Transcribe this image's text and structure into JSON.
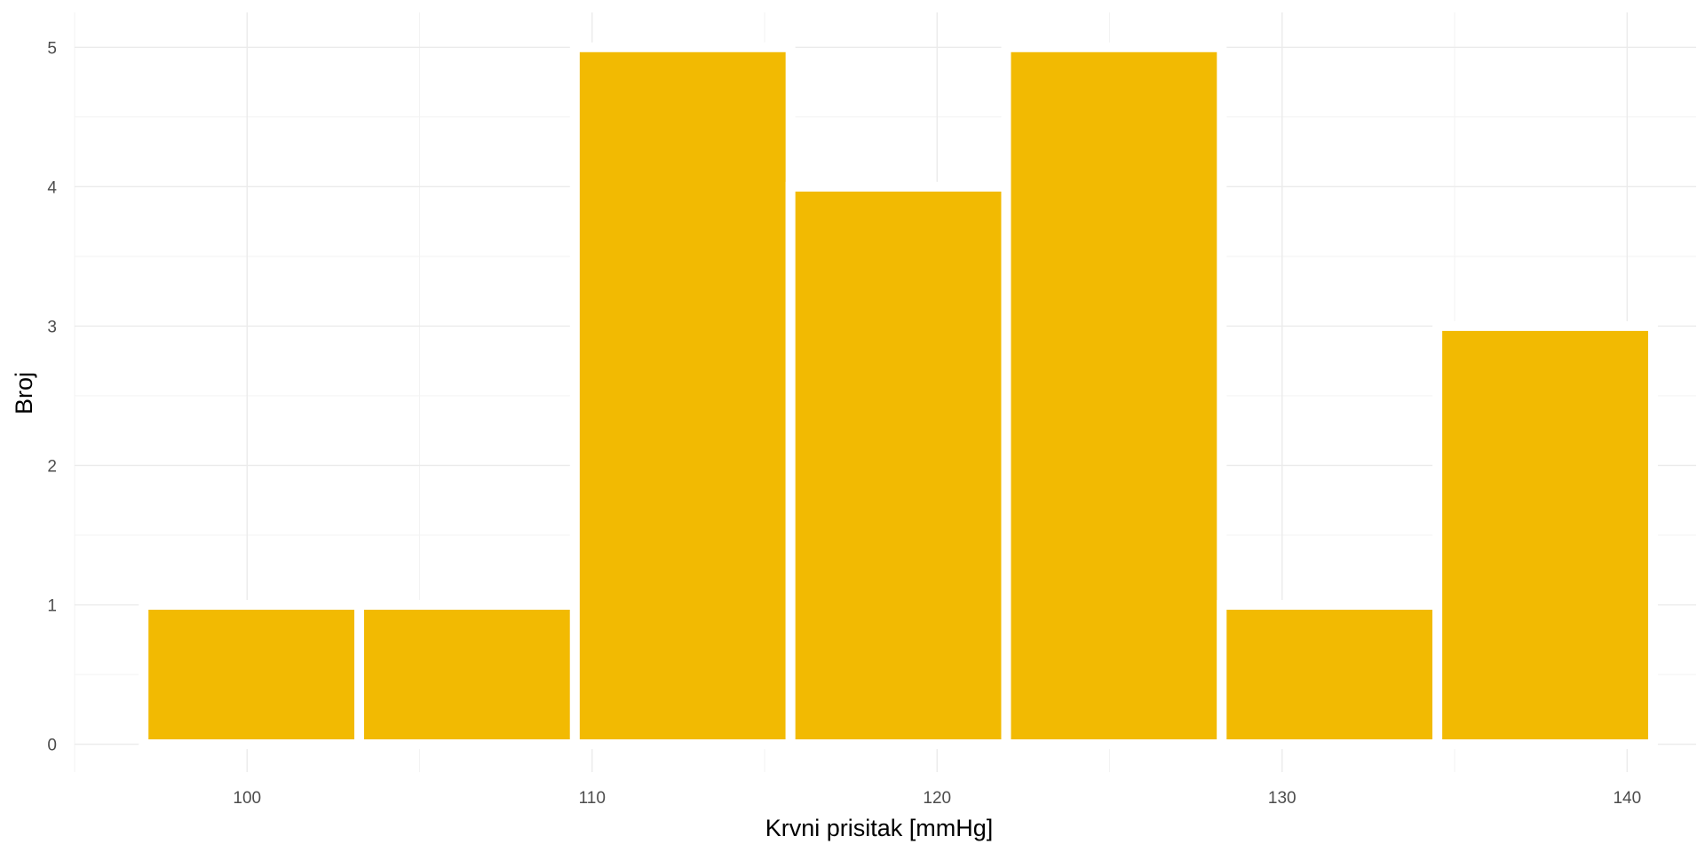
{
  "chart_data": {
    "type": "bar",
    "subtype": "histogram",
    "xlabel": "Krvni prisitak [mmHg]",
    "ylabel": "Broj",
    "bins": [
      {
        "start": 97,
        "end": 103.25,
        "count": 1
      },
      {
        "start": 103.25,
        "end": 109.5,
        "count": 1
      },
      {
        "start": 109.5,
        "end": 115.75,
        "count": 5
      },
      {
        "start": 115.75,
        "end": 122,
        "count": 4
      },
      {
        "start": 122,
        "end": 128.25,
        "count": 5
      },
      {
        "start": 128.25,
        "end": 134.5,
        "count": 1
      },
      {
        "start": 134.5,
        "end": 140.75,
        "count": 3
      }
    ],
    "xlim": [
      95,
      142
    ],
    "ylim": [
      -0.2,
      5.25
    ],
    "x_ticks": [
      100,
      110,
      120,
      130,
      140
    ],
    "x_tick_labels": [
      "100",
      "110",
      "120",
      "130",
      "140"
    ],
    "y_ticks": [
      0,
      1,
      2,
      3,
      4,
      5
    ],
    "y_tick_labels": [
      "0",
      "1",
      "2",
      "3",
      "4",
      "5"
    ],
    "bar_color": "#F2BA02",
    "bar_edge_color": "#ffffff",
    "background_color": "#ffffff",
    "grid": true,
    "legend": "none"
  }
}
